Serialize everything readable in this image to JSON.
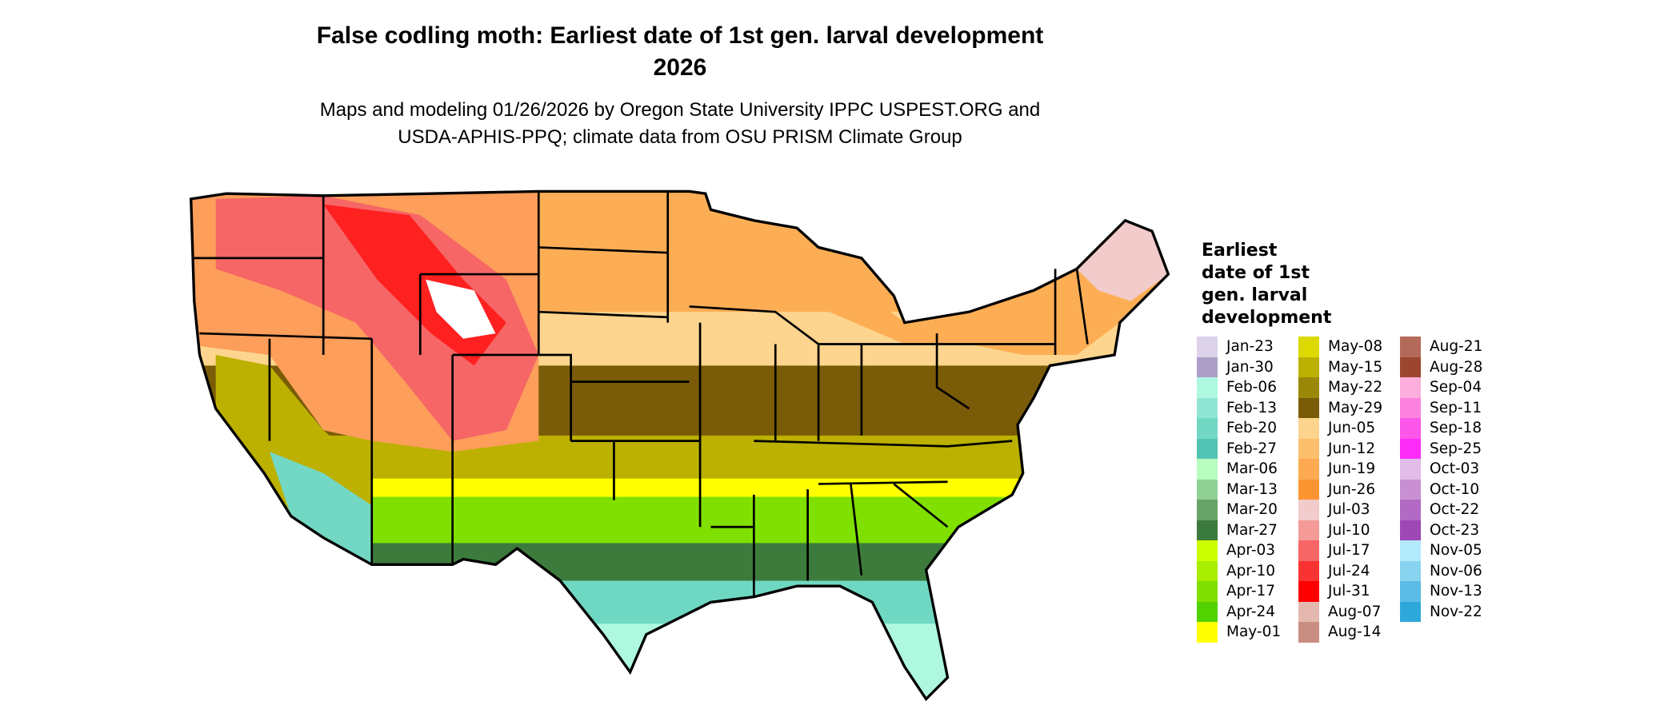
{
  "title": {
    "line1": "False codling moth: Earliest date of 1st gen. larval development",
    "line2": "2026"
  },
  "subtitle": {
    "line1": "Maps and modeling 01/26/2026 by Oregon State University IPPC USPEST.ORG and",
    "line2": "USDA-APHIS-PPQ; climate data from OSU PRISM Climate Group"
  },
  "map": {
    "region": "Contiguous United States",
    "colors": {
      "north_plains": "#fdae55",
      "corn_belt": "#fdd58e",
      "central_band": "#7a5c08",
      "south_central": "#bcb000",
      "yellow_band": "#ffff00",
      "gulf_green": "#80e000",
      "gulf_dark_green": "#3d7b3d",
      "coast_teal": "#6fd8c3",
      "florida": "#aef8e0",
      "mountains": "#ff3333",
      "high_peaks": "#f2cbcb",
      "state_borders": "#000000"
    }
  },
  "legend": {
    "title_lines": [
      "Earliest",
      "date of 1st",
      "gen. larval",
      "development"
    ],
    "items": [
      {
        "label": "Jan-23",
        "color": "#dcd3ea"
      },
      {
        "label": "Jan-30",
        "color": "#ada0c8"
      },
      {
        "label": "Feb-06",
        "color": "#aef8e0"
      },
      {
        "label": "Feb-13",
        "color": "#90e6d4"
      },
      {
        "label": "Feb-20",
        "color": "#72d8c4"
      },
      {
        "label": "Feb-27",
        "color": "#52c4b4"
      },
      {
        "label": "Mar-06",
        "color": "#b8fcc0"
      },
      {
        "label": "Mar-13",
        "color": "#8fd094"
      },
      {
        "label": "Mar-20",
        "color": "#66a468"
      },
      {
        "label": "Mar-27",
        "color": "#3c7b3e"
      },
      {
        "label": "Apr-03",
        "color": "#ccff00"
      },
      {
        "label": "Apr-10",
        "color": "#a8ee00"
      },
      {
        "label": "Apr-17",
        "color": "#80e000"
      },
      {
        "label": "Apr-24",
        "color": "#52d200"
      },
      {
        "label": "May-01",
        "color": "#ffff00"
      },
      {
        "label": "May-08",
        "color": "#dcd800"
      },
      {
        "label": "May-15",
        "color": "#bcb000"
      },
      {
        "label": "May-22",
        "color": "#9a8808"
      },
      {
        "label": "May-29",
        "color": "#7a5c08"
      },
      {
        "label": "Jun-05",
        "color": "#fdd58e"
      },
      {
        "label": "Jun-12",
        "color": "#fdbe6e"
      },
      {
        "label": "Jun-19",
        "color": "#fdaa52"
      },
      {
        "label": "Jun-26",
        "color": "#fd9432"
      },
      {
        "label": "Jul-03",
        "color": "#f2cbcb"
      },
      {
        "label": "Jul-10",
        "color": "#f49b98"
      },
      {
        "label": "Jul-17",
        "color": "#f66666"
      },
      {
        "label": "Jul-24",
        "color": "#fb3232"
      },
      {
        "label": "Jul-31",
        "color": "#ff0000"
      },
      {
        "label": "Aug-07",
        "color": "#e4b8ae"
      },
      {
        "label": "Aug-14",
        "color": "#c98e82"
      },
      {
        "label": "Aug-21",
        "color": "#b46a5a"
      },
      {
        "label": "Aug-28",
        "color": "#9c4630"
      },
      {
        "label": "Sep-04",
        "color": "#fdaedc"
      },
      {
        "label": "Sep-11",
        "color": "#fd82e0"
      },
      {
        "label": "Sep-18",
        "color": "#fd56ea"
      },
      {
        "label": "Sep-25",
        "color": "#fd2cf8"
      },
      {
        "label": "Oct-03",
        "color": "#e0bce6"
      },
      {
        "label": "Oct-10",
        "color": "#c890d2"
      },
      {
        "label": "Oct-22",
        "color": "#b26ac4"
      },
      {
        "label": "Oct-23",
        "color": "#9e48b6"
      },
      {
        "label": "Nov-05",
        "color": "#b2eafc"
      },
      {
        "label": "Nov-06",
        "color": "#88d4f0"
      },
      {
        "label": "Nov-13",
        "color": "#5abce6"
      },
      {
        "label": "Nov-22",
        "color": "#2ea8da"
      }
    ]
  }
}
